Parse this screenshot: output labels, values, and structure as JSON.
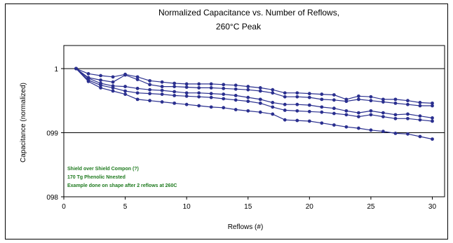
{
  "chart_data": {
    "type": "line",
    "title": "Normalized Capacitance vs. Number of Reflows,",
    "subtitle": "260°C Peak",
    "xlabel": "Reflows (#)",
    "ylabel": "Capacitance (normalized)",
    "xlim": [
      0,
      31
    ],
    "ylim": [
      0.98,
      1.0036
    ],
    "xticks": [
      "0",
      "5",
      "10",
      "15",
      "20",
      "25",
      "30"
    ],
    "xtick_values": [
      0,
      5,
      10,
      15,
      20,
      25,
      30
    ],
    "yticks": [
      "098",
      "099",
      "1"
    ],
    "ytick_values": [
      0.98,
      0.99,
      1.0
    ],
    "grid": "horizontal",
    "series_color": "#2a2f8f",
    "x": [
      1,
      2,
      3,
      4,
      5,
      6,
      7,
      8,
      9,
      10,
      11,
      12,
      13,
      14,
      15,
      16,
      17,
      18,
      19,
      20,
      21,
      22,
      23,
      24,
      25,
      26,
      27,
      28,
      29,
      30
    ],
    "series": [
      {
        "values": [
          1.0,
          0.9992,
          0.9989,
          0.9987,
          0.9991,
          0.9987,
          0.9981,
          0.9979,
          0.9977,
          0.9976,
          0.9976,
          0.9976,
          0.9975,
          0.9974,
          0.9972,
          0.997,
          0.9967,
          0.9962,
          0.9962,
          0.9961,
          0.996,
          0.9959,
          0.9952,
          0.9957,
          0.9956,
          0.9952,
          0.9952,
          0.995,
          0.9947,
          0.9946
        ]
      },
      {
        "values": [
          1.0,
          0.9986,
          0.9982,
          0.9979,
          0.999,
          0.9983,
          0.9975,
          0.9972,
          0.9972,
          0.9971,
          0.997,
          0.997,
          0.9969,
          0.9968,
          0.9967,
          0.9965,
          0.9962,
          0.9956,
          0.9956,
          0.9955,
          0.9952,
          0.9951,
          0.9949,
          0.9952,
          0.995,
          0.9948,
          0.9946,
          0.9944,
          0.9942,
          0.9942
        ]
      },
      {
        "values": [
          1.0,
          0.9985,
          0.9977,
          0.9973,
          0.9972,
          0.9969,
          0.9967,
          0.9966,
          0.9964,
          0.9962,
          0.9962,
          0.9961,
          0.996,
          0.9958,
          0.9955,
          0.9952,
          0.9947,
          0.9944,
          0.9944,
          0.9943,
          0.994,
          0.9938,
          0.9934,
          0.9931,
          0.9934,
          0.9931,
          0.9928,
          0.9929,
          0.9926,
          0.9923
        ]
      },
      {
        "values": [
          1.0,
          0.9982,
          0.9974,
          0.997,
          0.9965,
          0.9962,
          0.9961,
          0.996,
          0.9958,
          0.9957,
          0.9956,
          0.9955,
          0.9953,
          0.9951,
          0.9949,
          0.9946,
          0.994,
          0.9935,
          0.9934,
          0.9933,
          0.9932,
          0.993,
          0.9928,
          0.9925,
          0.9928,
          0.9925,
          0.9922,
          0.9922,
          0.992,
          0.9918
        ]
      },
      {
        "values": [
          1.0,
          0.998,
          0.997,
          0.9965,
          0.996,
          0.9952,
          0.995,
          0.9948,
          0.9946,
          0.9944,
          0.9942,
          0.994,
          0.9939,
          0.9936,
          0.9934,
          0.9932,
          0.9929,
          0.992,
          0.9919,
          0.9918,
          0.9915,
          0.9912,
          0.9909,
          0.9907,
          0.9904,
          0.9902,
          0.9899,
          0.9898,
          0.9894,
          0.989
        ]
      }
    ],
    "annotation": [
      "Shield over Shield Compon (?)",
      "170 Tg Phenolic Nnested",
      "Example done on shape after 2 reflows at 260C"
    ]
  }
}
